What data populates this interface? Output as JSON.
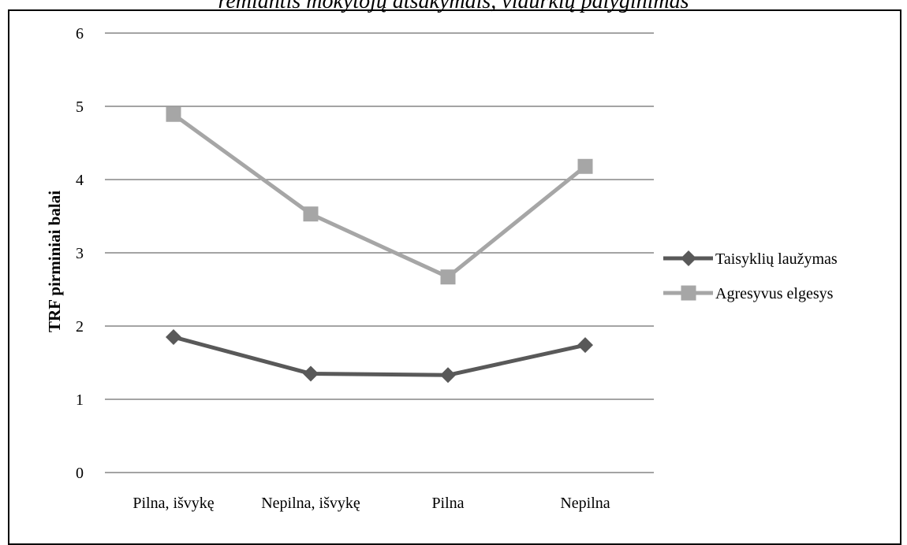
{
  "caption": "remiantis mokytojų atsakymais, vidurkių palyginimas",
  "chart_data": {
    "type": "line",
    "title": "",
    "xlabel": "",
    "ylabel": "TRF pirminiai balai",
    "categories": [
      "Pilna, išvykę",
      "Nepilna, išvykę",
      "Pilna",
      "Nepilna"
    ],
    "ylim": [
      0,
      6
    ],
    "yticks": [
      0,
      1,
      2,
      3,
      4,
      5,
      6
    ],
    "grid": true,
    "legend_position": "right",
    "series": [
      {
        "name": "Taisyklių laužymas",
        "values": [
          1.85,
          1.35,
          1.33,
          1.74
        ],
        "color": "#595959",
        "marker": "diamond"
      },
      {
        "name": "Agresyvus elgesys",
        "values": [
          4.89,
          3.53,
          2.67,
          4.18
        ],
        "color": "#a6a6a6",
        "marker": "square"
      }
    ]
  }
}
